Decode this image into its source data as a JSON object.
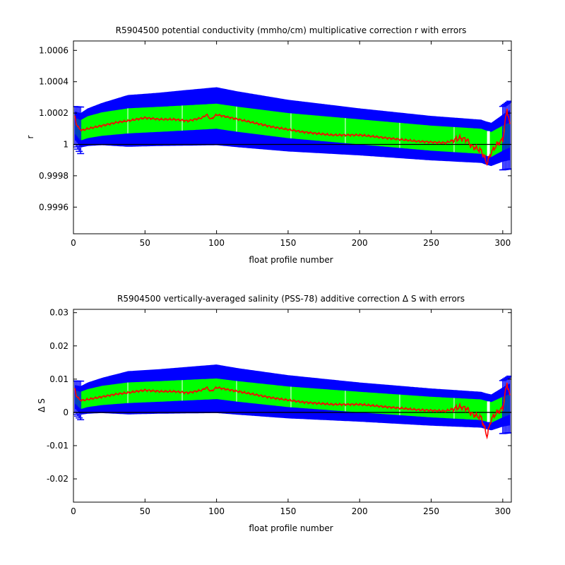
{
  "chart_data": [
    {
      "type": "line",
      "title": "R5904500 potential conductivity (mmho/cm) multiplicative correction r with errors",
      "xlabel": "float profile number",
      "ylabel": "r",
      "xlim": [
        0,
        306
      ],
      "ylim": [
        0.99943,
        1.00066
      ],
      "xticks": [
        0,
        50,
        100,
        150,
        200,
        250,
        300
      ],
      "yticks": [
        0.9996,
        0.9998,
        1,
        1.0002,
        1.0004,
        1.0006
      ],
      "ytick_labels": [
        "0.9996",
        "0.9998",
        "1",
        "1.0002",
        "1.0004",
        "1.0006"
      ],
      "grid": false,
      "reference_line": 1,
      "colors": {
        "outer_band": "#0000ff",
        "inner_band": "#00ff00",
        "series": "#ff0000",
        "reference": "#000000",
        "errorbars": "#0000ff"
      },
      "band_x": [
        1,
        5,
        10,
        20,
        38,
        60,
        80,
        100,
        115,
        150,
        200,
        250,
        285,
        288,
        292,
        300,
        305
      ],
      "series": [
        {
          "role": "center",
          "values": [
            1.00012,
            1.00009,
            1.00011,
            1.00013,
            1.00015,
            1.00016,
            1.00017,
            1.00018,
            1.00016,
            1.00012,
            1.00008,
            1.00004,
            1.00002,
            1.00001,
            1.0,
            1.00004,
            1.00006
          ]
        },
        {
          "role": "inner_half_width",
          "values": [
            5.2e-05,
            6.5e-05,
            7e-05,
            7.5e-05,
            8e-05,
            8e-05,
            8e-05,
            8e-05,
            8e-05,
            8e-05,
            8e-05,
            8e-05,
            8e-05,
            8e-05,
            8e-05,
            8e-05,
            8e-05
          ]
        },
        {
          "role": "outer_half_width",
          "values": [
            9e-05,
            0.00011,
            0.00012,
            0.000135,
            0.000165,
            0.00017,
            0.000178,
            0.000185,
            0.000178,
            0.000165,
            0.00015,
            0.000142,
            0.000138,
            0.000138,
            0.000138,
            0.00015,
            0.00016
          ]
        }
      ],
      "red_trace_anchors": {
        "x": [
          1,
          2,
          4,
          6,
          10,
          20,
          30,
          38,
          50,
          60,
          70,
          80,
          90,
          93,
          96,
          100,
          110,
          120,
          140,
          160,
          180,
          200,
          220,
          240,
          260,
          270,
          275,
          278,
          285,
          289,
          292,
          296,
          300,
          303,
          305
        ],
        "y": [
          1.00018,
          1.00013,
          1.0001,
          1.00009,
          1.0001,
          1.00012,
          1.00014,
          1.00015,
          1.00017,
          1.00016,
          1.00016,
          1.00015,
          1.00017,
          1.00019,
          1.00016,
          1.00019,
          1.00017,
          1.00015,
          1.00011,
          1.00008,
          1.00006,
          1.00006,
          1.00004,
          1.00002,
          1.00001,
          1.00004,
          1.00003,
          0.99999,
          0.99996,
          0.99988,
          0.99995,
          1.0,
          1.00003,
          1.00023,
          1.00012
        ]
      },
      "white_lines_x": [
        38,
        76,
        114,
        152,
        190,
        228,
        266,
        290
      ]
    },
    {
      "type": "line",
      "title": "R5904500 vertically-averaged salinity (PSS-78) additive correction Δ S with errors",
      "xlabel": "float profile number",
      "ylabel": "Δ S",
      "xlim": [
        0,
        306
      ],
      "ylim": [
        -0.027,
        0.031
      ],
      "xticks": [
        0,
        50,
        100,
        150,
        200,
        250,
        300
      ],
      "yticks": [
        -0.02,
        -0.01,
        0,
        0.01,
        0.02,
        0.03
      ],
      "ytick_labels": [
        "-0.02",
        "-0.01",
        "0",
        "0.01",
        "0.02",
        "0.03"
      ],
      "grid": false,
      "reference_line": 0,
      "colors": {
        "outer_band": "#0000ff",
        "inner_band": "#00ff00",
        "series": "#ff0000",
        "reference": "#000000",
        "errorbars": "#0000ff"
      },
      "band_x": [
        1,
        5,
        10,
        20,
        38,
        60,
        80,
        100,
        115,
        150,
        200,
        250,
        285,
        288,
        292,
        300,
        305
      ],
      "series": [
        {
          "role": "center",
          "values": [
            0.0047,
            0.0036,
            0.0043,
            0.0051,
            0.0059,
            0.0063,
            0.0067,
            0.0071,
            0.0063,
            0.0047,
            0.0031,
            0.0016,
            0.0008,
            0.0004,
            0.0,
            0.0016,
            0.0024
          ]
        },
        {
          "role": "inner_half_width",
          "values": [
            0.002,
            0.0026,
            0.0027,
            0.0029,
            0.0031,
            0.0031,
            0.0031,
            0.0031,
            0.0031,
            0.0031,
            0.0031,
            0.0031,
            0.0031,
            0.0031,
            0.0031,
            0.0031,
            0.0031
          ]
        },
        {
          "role": "outer_half_width",
          "values": [
            0.0035,
            0.0043,
            0.0047,
            0.0053,
            0.0065,
            0.0067,
            0.007,
            0.0073,
            0.007,
            0.0065,
            0.0059,
            0.0056,
            0.0054,
            0.0054,
            0.0054,
            0.0059,
            0.0063
          ]
        }
      ],
      "red_trace_anchors": {
        "x": [
          1,
          2,
          4,
          6,
          10,
          20,
          30,
          38,
          50,
          60,
          70,
          80,
          90,
          93,
          96,
          100,
          110,
          120,
          140,
          160,
          180,
          200,
          220,
          240,
          260,
          270,
          275,
          278,
          285,
          289,
          292,
          296,
          300,
          303,
          305
        ],
        "y": [
          0.0071,
          0.0051,
          0.0039,
          0.0036,
          0.0039,
          0.0047,
          0.0055,
          0.0059,
          0.0067,
          0.0063,
          0.0063,
          0.0059,
          0.0067,
          0.0075,
          0.0063,
          0.0075,
          0.0067,
          0.0059,
          0.0043,
          0.0031,
          0.0024,
          0.0024,
          0.0016,
          0.0008,
          0.0004,
          0.0016,
          0.0012,
          -0.0004,
          -0.0016,
          -0.0071,
          -0.002,
          0.0,
          0.0012,
          0.009,
          0.0047
        ]
      },
      "white_lines_x": [
        38,
        76,
        114,
        152,
        190,
        228,
        266,
        290
      ]
    }
  ]
}
